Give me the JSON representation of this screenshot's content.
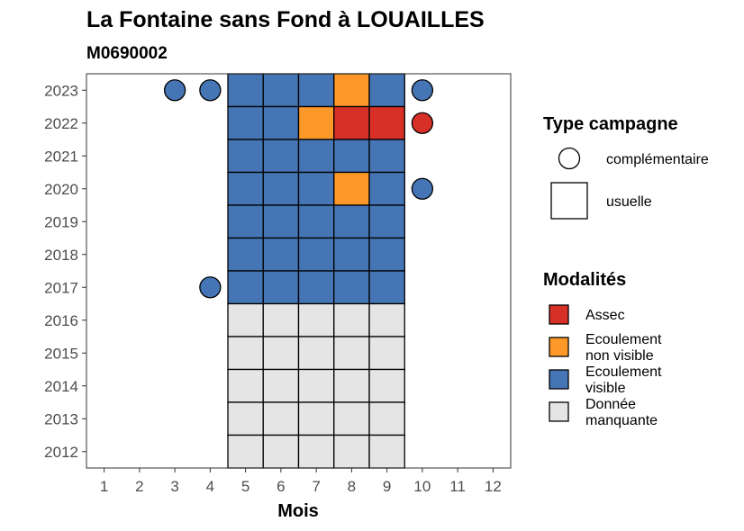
{
  "chart_data": {
    "type": "heatmap",
    "title": "La Fontaine sans Fond à LOUAILLES",
    "subtitle": "M0690002",
    "xlabel": "Mois",
    "ylabel": "",
    "x_ticks": [
      "1",
      "2",
      "3",
      "4",
      "5",
      "6",
      "7",
      "8",
      "9",
      "10",
      "11",
      "12"
    ],
    "y_ticks": [
      "2012",
      "2013",
      "2014",
      "2015",
      "2016",
      "2017",
      "2018",
      "2019",
      "2020",
      "2021",
      "2022",
      "2023"
    ],
    "xlim": [
      0.5,
      12.5
    ],
    "ylim": [
      2011.5,
      2023.5
    ],
    "grid": false,
    "legend_position": "right",
    "colors": {
      "Assec": "#d73027",
      "Ecoulement non visible": "#fe9929",
      "Ecoulement visible": "#4575b4",
      "Donnée manquante": "#e5e5e5"
    },
    "legends": [
      {
        "title": "Type campagne",
        "items": [
          {
            "label": "complémentaire",
            "shape": "circle"
          },
          {
            "label": "usuelle",
            "shape": "square"
          }
        ]
      },
      {
        "title": "Modalités",
        "items": [
          {
            "label_lines": [
              "Assec"
            ],
            "key": "Assec"
          },
          {
            "label_lines": [
              "Ecoulement",
              "non visible"
            ],
            "key": "Ecoulement non visible"
          },
          {
            "label_lines": [
              "Ecoulement",
              "visible"
            ],
            "key": "Ecoulement visible"
          },
          {
            "label_lines": [
              "Donnée",
              "manquante"
            ],
            "key": "Donnée manquante"
          }
        ]
      }
    ],
    "usuelle": [
      {
        "year": 2023,
        "month": 5,
        "value": "Ecoulement visible"
      },
      {
        "year": 2023,
        "month": 6,
        "value": "Ecoulement visible"
      },
      {
        "year": 2023,
        "month": 7,
        "value": "Ecoulement visible"
      },
      {
        "year": 2023,
        "month": 8,
        "value": "Ecoulement non visible"
      },
      {
        "year": 2023,
        "month": 9,
        "value": "Ecoulement visible"
      },
      {
        "year": 2022,
        "month": 5,
        "value": "Ecoulement visible"
      },
      {
        "year": 2022,
        "month": 6,
        "value": "Ecoulement visible"
      },
      {
        "year": 2022,
        "month": 7,
        "value": "Ecoulement non visible"
      },
      {
        "year": 2022,
        "month": 8,
        "value": "Assec"
      },
      {
        "year": 2022,
        "month": 9,
        "value": "Assec"
      },
      {
        "year": 2021,
        "month": 5,
        "value": "Ecoulement visible"
      },
      {
        "year": 2021,
        "month": 6,
        "value": "Ecoulement visible"
      },
      {
        "year": 2021,
        "month": 7,
        "value": "Ecoulement visible"
      },
      {
        "year": 2021,
        "month": 8,
        "value": "Ecoulement visible"
      },
      {
        "year": 2021,
        "month": 9,
        "value": "Ecoulement visible"
      },
      {
        "year": 2020,
        "month": 5,
        "value": "Ecoulement visible"
      },
      {
        "year": 2020,
        "month": 6,
        "value": "Ecoulement visible"
      },
      {
        "year": 2020,
        "month": 7,
        "value": "Ecoulement visible"
      },
      {
        "year": 2020,
        "month": 8,
        "value": "Ecoulement non visible"
      },
      {
        "year": 2020,
        "month": 9,
        "value": "Ecoulement visible"
      },
      {
        "year": 2019,
        "month": 5,
        "value": "Ecoulement visible"
      },
      {
        "year": 2019,
        "month": 6,
        "value": "Ecoulement visible"
      },
      {
        "year": 2019,
        "month": 7,
        "value": "Ecoulement visible"
      },
      {
        "year": 2019,
        "month": 8,
        "value": "Ecoulement visible"
      },
      {
        "year": 2019,
        "month": 9,
        "value": "Ecoulement visible"
      },
      {
        "year": 2018,
        "month": 5,
        "value": "Ecoulement visible"
      },
      {
        "year": 2018,
        "month": 6,
        "value": "Ecoulement visible"
      },
      {
        "year": 2018,
        "month": 7,
        "value": "Ecoulement visible"
      },
      {
        "year": 2018,
        "month": 8,
        "value": "Ecoulement visible"
      },
      {
        "year": 2018,
        "month": 9,
        "value": "Ecoulement visible"
      },
      {
        "year": 2017,
        "month": 5,
        "value": "Ecoulement visible"
      },
      {
        "year": 2017,
        "month": 6,
        "value": "Ecoulement visible"
      },
      {
        "year": 2017,
        "month": 7,
        "value": "Ecoulement visible"
      },
      {
        "year": 2017,
        "month": 8,
        "value": "Ecoulement visible"
      },
      {
        "year": 2017,
        "month": 9,
        "value": "Ecoulement visible"
      },
      {
        "year": 2016,
        "month": 5,
        "value": "Donnée manquante"
      },
      {
        "year": 2016,
        "month": 6,
        "value": "Donnée manquante"
      },
      {
        "year": 2016,
        "month": 7,
        "value": "Donnée manquante"
      },
      {
        "year": 2016,
        "month": 8,
        "value": "Donnée manquante"
      },
      {
        "year": 2016,
        "month": 9,
        "value": "Donnée manquante"
      },
      {
        "year": 2015,
        "month": 5,
        "value": "Donnée manquante"
      },
      {
        "year": 2015,
        "month": 6,
        "value": "Donnée manquante"
      },
      {
        "year": 2015,
        "month": 7,
        "value": "Donnée manquante"
      },
      {
        "year": 2015,
        "month": 8,
        "value": "Donnée manquante"
      },
      {
        "year": 2015,
        "month": 9,
        "value": "Donnée manquante"
      },
      {
        "year": 2014,
        "month": 5,
        "value": "Donnée manquante"
      },
      {
        "year": 2014,
        "month": 6,
        "value": "Donnée manquante"
      },
      {
        "year": 2014,
        "month": 7,
        "value": "Donnée manquante"
      },
      {
        "year": 2014,
        "month": 8,
        "value": "Donnée manquante"
      },
      {
        "year": 2014,
        "month": 9,
        "value": "Donnée manquante"
      },
      {
        "year": 2013,
        "month": 5,
        "value": "Donnée manquante"
      },
      {
        "year": 2013,
        "month": 6,
        "value": "Donnée manquante"
      },
      {
        "year": 2013,
        "month": 7,
        "value": "Donnée manquante"
      },
      {
        "year": 2013,
        "month": 8,
        "value": "Donnée manquante"
      },
      {
        "year": 2013,
        "month": 9,
        "value": "Donnée manquante"
      },
      {
        "year": 2012,
        "month": 5,
        "value": "Donnée manquante"
      },
      {
        "year": 2012,
        "month": 6,
        "value": "Donnée manquante"
      },
      {
        "year": 2012,
        "month": 7,
        "value": "Donnée manquante"
      },
      {
        "year": 2012,
        "month": 8,
        "value": "Donnée manquante"
      },
      {
        "year": 2012,
        "month": 9,
        "value": "Donnée manquante"
      }
    ],
    "complementaire": [
      {
        "year": 2023,
        "month": 3,
        "value": "Ecoulement visible"
      },
      {
        "year": 2023,
        "month": 4,
        "value": "Ecoulement visible"
      },
      {
        "year": 2023,
        "month": 10,
        "value": "Ecoulement visible"
      },
      {
        "year": 2022,
        "month": 10,
        "value": "Assec"
      },
      {
        "year": 2020,
        "month": 10,
        "value": "Ecoulement visible"
      },
      {
        "year": 2017,
        "month": 4,
        "value": "Ecoulement visible"
      }
    ]
  }
}
